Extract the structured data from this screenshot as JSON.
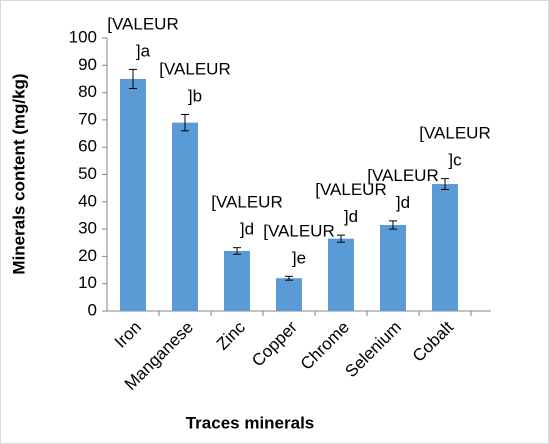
{
  "chart_data": {
    "type": "bar",
    "x_label": "Traces minerals",
    "y_label": "Minerals content (mg/kg)",
    "categories": [
      "Iron",
      "Manganese",
      "Zinc",
      "Copper",
      "Chrome",
      "Selenium",
      "Cobalt"
    ],
    "values": [
      85,
      69,
      22,
      12,
      26.5,
      31.5,
      46.5
    ],
    "errors": [
      3.5,
      3,
      1.2,
      0.7,
      1.3,
      1.5,
      2
    ],
    "value_labels": [
      "[VALEUR ]a",
      "[VALEUR ]b",
      "[VALEUR ]d",
      "[VALEUR ]e",
      "[VALEUR ]d",
      "[VALEUR ]d",
      "[VALEUR ]c"
    ],
    "color": "#5b9bd5",
    "ylim": [
      0,
      100
    ],
    "yticks": [
      0,
      10,
      20,
      30,
      40,
      50,
      60,
      70,
      80,
      90,
      100
    ],
    "grid": false
  }
}
